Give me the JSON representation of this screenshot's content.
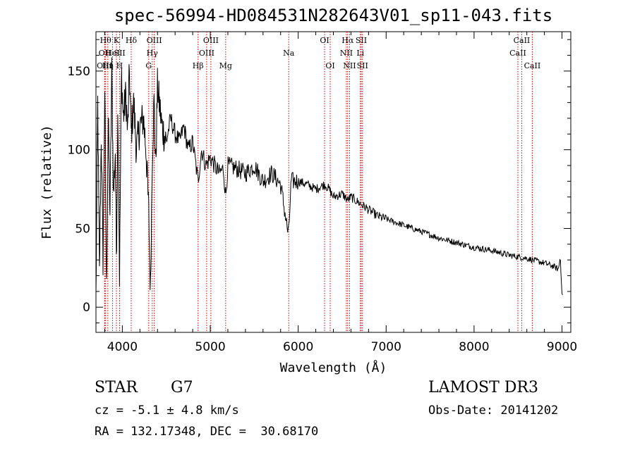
{
  "chart_data": {
    "type": "line",
    "title": "spec-56994-HD084531N282643V01_sp11-043.fits",
    "xlabel": "Wavelength (Å)",
    "ylabel": "Flux (relative)",
    "xlim": [
      3700,
      9100
    ],
    "ylim": [
      -16,
      175
    ],
    "x_ticks": [
      4000,
      5000,
      6000,
      7000,
      8000,
      9000
    ],
    "y_ticks": [
      0,
      50,
      100,
      150
    ],
    "line_color": "#000000",
    "marker_color": "#cc0000",
    "spectrum_anchors": [
      [
        3700,
        5
      ],
      [
        3720,
        130
      ],
      [
        3740,
        20
      ],
      [
        3760,
        110
      ],
      [
        3780,
        30
      ],
      [
        3800,
        140
      ],
      [
        3820,
        10
      ],
      [
        3840,
        120
      ],
      [
        3860,
        60
      ],
      [
        3880,
        150
      ],
      [
        3900,
        70
      ],
      [
        3920,
        100
      ],
      [
        3933,
        30
      ],
      [
        3950,
        130
      ],
      [
        3968,
        20
      ],
      [
        3990,
        150
      ],
      [
        4010,
        120
      ],
      [
        4040,
        135
      ],
      [
        4060,
        110
      ],
      [
        4080,
        150
      ],
      [
        4101,
        110
      ],
      [
        4130,
        130
      ],
      [
        4160,
        100
      ],
      [
        4200,
        115
      ],
      [
        4240,
        120
      ],
      [
        4270,
        100
      ],
      [
        4300,
        60
      ],
      [
        4320,
        10
      ],
      [
        4340,
        95
      ],
      [
        4360,
        130
      ],
      [
        4380,
        90
      ],
      [
        4400,
        140
      ],
      [
        4450,
        115
      ],
      [
        4500,
        105
      ],
      [
        4550,
        120
      ],
      [
        4600,
        110
      ],
      [
        4650,
        105
      ],
      [
        4700,
        115
      ],
      [
        4750,
        100
      ],
      [
        4800,
        105
      ],
      [
        4861,
        80
      ],
      [
        4900,
        100
      ],
      [
        4950,
        90
      ],
      [
        5000,
        95
      ],
      [
        5050,
        90
      ],
      [
        5100,
        85
      ],
      [
        5150,
        88
      ],
      [
        5175,
        70
      ],
      [
        5200,
        90
      ],
      [
        5300,
        88
      ],
      [
        5400,
        85
      ],
      [
        5500,
        90
      ],
      [
        5600,
        80
      ],
      [
        5700,
        85
      ],
      [
        5800,
        78
      ],
      [
        5890,
        45
      ],
      [
        5920,
        80
      ],
      [
        6000,
        80
      ],
      [
        6100,
        78
      ],
      [
        6200,
        75
      ],
      [
        6300,
        78
      ],
      [
        6350,
        75
      ],
      [
        6400,
        70
      ],
      [
        6500,
        72
      ],
      [
        6563,
        68
      ],
      [
        6600,
        70
      ],
      [
        6700,
        66
      ],
      [
        6800,
        62
      ],
      [
        6900,
        58
      ],
      [
        7000,
        56
      ],
      [
        7200,
        52
      ],
      [
        7400,
        48
      ],
      [
        7600,
        44
      ],
      [
        7800,
        41
      ],
      [
        8000,
        38
      ],
      [
        8200,
        36
      ],
      [
        8400,
        33
      ],
      [
        8600,
        31
      ],
      [
        8800,
        28
      ],
      [
        8900,
        26
      ],
      [
        8960,
        24
      ],
      [
        8980,
        32
      ],
      [
        9000,
        10
      ],
      [
        9010,
        3
      ]
    ],
    "lines_top": [
      {
        "wl": 3800,
        "label": "OII",
        "row": 1
      },
      {
        "wl": 3835,
        "label": "Hη",
        "row": 2
      },
      {
        "wl": 3798,
        "label": "OIII",
        "row": 2
      },
      {
        "wl": 3810,
        "label": "Hθ",
        "row": 0
      },
      {
        "wl": 3889,
        "label": "HeI",
        "row": 1
      },
      {
        "wl": 3933,
        "label": "K",
        "row": 0
      },
      {
        "wl": 3968,
        "label": "H",
        "row": 2
      },
      {
        "wl": 3970,
        "label": "SII",
        "row": 1
      },
      {
        "wl": 4101,
        "label": "Hδ",
        "row": 0
      },
      {
        "wl": 4300,
        "label": "G",
        "row": 2
      },
      {
        "wl": 4340,
        "label": "Hγ",
        "row": 1
      },
      {
        "wl": 4363,
        "label": "OIII",
        "row": 0
      },
      {
        "wl": 4861,
        "label": "Hβ",
        "row": 2
      },
      {
        "wl": 4959,
        "label": "OIII",
        "row": 1
      },
      {
        "wl": 5007,
        "label": "OIII",
        "row": 0
      },
      {
        "wl": 5175,
        "label": "Mg",
        "row": 2
      },
      {
        "wl": 5892,
        "label": "Na",
        "row": 1
      },
      {
        "wl": 6300,
        "label": "OI",
        "row": 0
      },
      {
        "wl": 6364,
        "label": "OI",
        "row": 2
      },
      {
        "wl": 6548,
        "label": "NII",
        "row": 1
      },
      {
        "wl": 6563,
        "label": "Hα",
        "row": 0
      },
      {
        "wl": 6584,
        "label": "NII",
        "row": 2
      },
      {
        "wl": 6707,
        "label": "Li",
        "row": 1
      },
      {
        "wl": 6717,
        "label": "SII",
        "row": 0
      },
      {
        "wl": 6731,
        "label": "SII",
        "row": 2
      },
      {
        "wl": 8498,
        "label": "CaII",
        "row": 1
      },
      {
        "wl": 8542,
        "label": "CaII",
        "row": 0
      },
      {
        "wl": 8662,
        "label": "CaII",
        "row": 2
      }
    ]
  },
  "info": {
    "class_label": "STAR",
    "subclass": "G7",
    "survey": "LAMOST DR3",
    "cz": "cz = -5.1 ± 4.8 km/s",
    "obs_date": "Obs-Date: 20141202",
    "radec": "RA = 132.17348, DEC =  30.68170"
  }
}
